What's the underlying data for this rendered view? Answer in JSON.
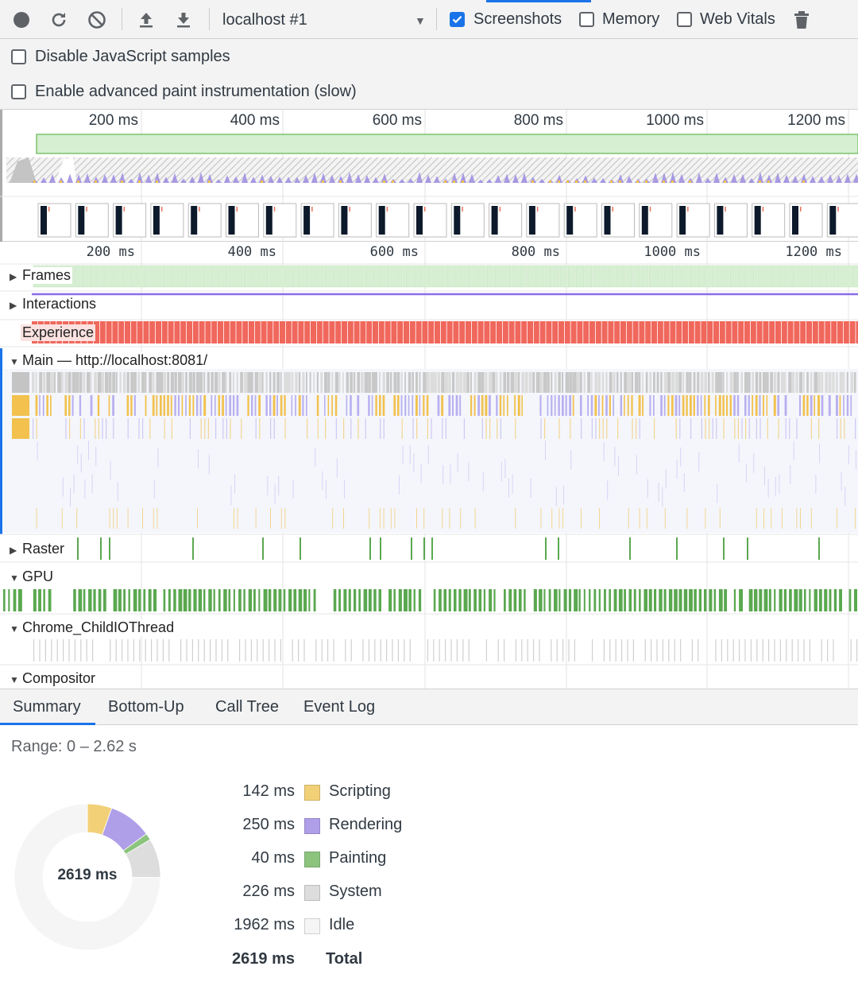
{
  "toolbar": {
    "target": "localhost #1",
    "screenshots": {
      "label": "Screenshots",
      "checked": true
    },
    "memory": {
      "label": "Memory",
      "checked": false
    },
    "web_vitals": {
      "label": "Web Vitals",
      "checked": false
    }
  },
  "settings": {
    "disable_js_samples": {
      "label": "Disable JavaScript samples",
      "checked": false
    },
    "advanced_paint": {
      "label": "Enable advanced paint instrumentation (slow)",
      "checked": false
    }
  },
  "overview_ruler": [
    "200 ms",
    "400 ms",
    "600 ms",
    "800 ms",
    "1000 ms",
    "1200 ms"
  ],
  "flame_ruler": [
    "200 ms",
    "400 ms",
    "600 ms",
    "800 ms",
    "1000 ms",
    "1200 ms"
  ],
  "tracks": {
    "frames": "Frames",
    "interactions": "Interactions",
    "experience": "Experience",
    "main": "Main — http://localhost:8081/",
    "raster": "Raster",
    "gpu": "GPU",
    "io_thread": "Chrome_ChildIOThread",
    "compositor": "Compositor"
  },
  "tabs": [
    {
      "label": "Summary",
      "active": true
    },
    {
      "label": "Bottom-Up",
      "active": false
    },
    {
      "label": "Call Tree",
      "active": false
    },
    {
      "label": "Event Log",
      "active": false
    }
  ],
  "summary": {
    "range": "Range: 0 – 2.62 s",
    "total_center": "2619 ms",
    "items": [
      {
        "value": "142 ms",
        "name": "Scripting",
        "ms": 142,
        "color": "#f2d078"
      },
      {
        "value": "250 ms",
        "name": "Rendering",
        "ms": 250,
        "color": "#af9ee8"
      },
      {
        "value": "40 ms",
        "name": "Painting",
        "ms": 40,
        "color": "#8cc47e"
      },
      {
        "value": "226 ms",
        "name": "System",
        "ms": 226,
        "color": "#dddddd"
      },
      {
        "value": "1962 ms",
        "name": "Idle",
        "ms": 1962,
        "color": "#f5f5f5"
      }
    ],
    "total": {
      "value": "2619 ms",
      "name": "Total"
    }
  },
  "colors": {
    "accent": "#1a73e8",
    "frames": "#d6efd2",
    "experience": "#f0675c",
    "gpu": "#5aa84f",
    "scripting": "#f2c14e",
    "rendering": "#9c8be0"
  }
}
